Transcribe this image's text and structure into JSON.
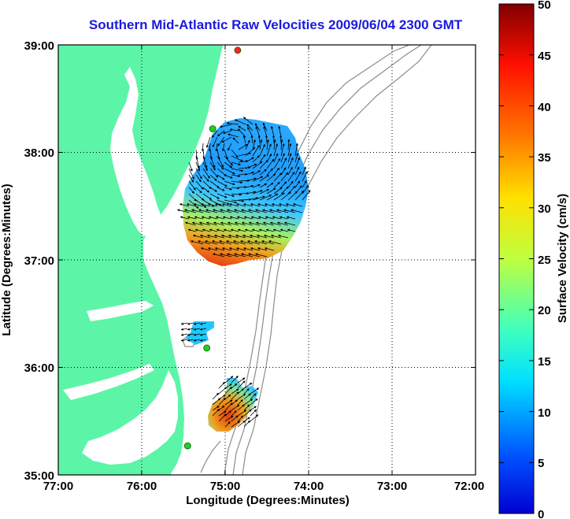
{
  "title": "Southern Mid-Atlantic Raw Velocities 2009/06/04 2300 GMT",
  "x_axis": {
    "label": "Longitude (Degrees:Minutes)",
    "ticks": [
      "77:00",
      "76:00",
      "75:00",
      "74:00",
      "73:00",
      "72:00"
    ]
  },
  "y_axis": {
    "label": "Latitude (Degrees:Minutes)",
    "ticks": [
      "39:00",
      "38:00",
      "37:00",
      "36:00",
      "35:00"
    ]
  },
  "colorbar": {
    "label": "Surface Velocity (cm/s)",
    "ticks": [
      "50",
      "45",
      "40",
      "35",
      "30",
      "25",
      "20",
      "15",
      "10",
      "5",
      "0"
    ],
    "min": 0,
    "max": 50
  },
  "colors": {
    "title": "#1a1adf",
    "land": "#5cf5a8",
    "bathymetry": "#8c8c8c",
    "station": "#22cc22",
    "station_alt": "#ff2020"
  },
  "map_data": {
    "lon_range": [
      -77,
      -72
    ],
    "lat_range": [
      35,
      39
    ],
    "grid": "dotted",
    "velocity_regions": [
      {
        "name": "main",
        "speed_range_cms": [
          0,
          35
        ]
      },
      {
        "name": "middle",
        "speed_range_cms": [
          8,
          14
        ]
      },
      {
        "name": "south",
        "speed_range_cms": [
          5,
          35
        ]
      }
    ],
    "stations": [
      {
        "lon": -74.85,
        "lat": 38.95,
        "status": "red"
      },
      {
        "lon": -75.15,
        "lat": 38.22,
        "status": "green"
      },
      {
        "lon": -75.22,
        "lat": 36.18,
        "status": "green"
      },
      {
        "lon": -75.45,
        "lat": 35.27,
        "status": "green"
      }
    ]
  }
}
